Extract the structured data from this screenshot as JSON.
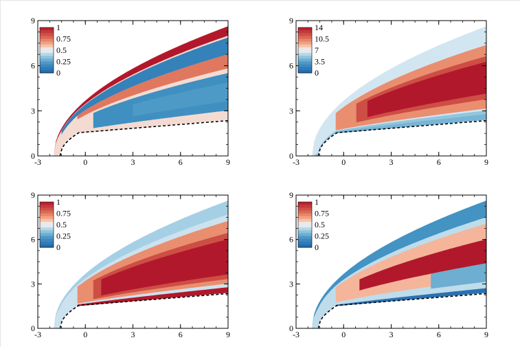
{
  "chart_data": [
    {
      "type": "heatmap",
      "panel": "top-left",
      "x_ticks": [
        "-3",
        "0",
        "3",
        "6",
        "9"
      ],
      "y_ticks": [
        "0",
        "3",
        "6",
        "9"
      ],
      "xlim": [
        -3,
        9
      ],
      "ylim": [
        0,
        9
      ],
      "legend_labels": [
        "1",
        "0.75",
        "0.5",
        "0.25",
        "0"
      ],
      "legend_position": "top-left",
      "value_range": [
        0,
        1
      ],
      "features": [
        {
          "kind": "bow-shock-band",
          "level": 1.0
        },
        {
          "kind": "low-band",
          "level": 0.1
        },
        {
          "kind": "high-band",
          "level": 0.8
        },
        {
          "kind": "low-region",
          "level": 0.15
        }
      ],
      "boundary_line": "dashed"
    },
    {
      "type": "heatmap",
      "panel": "top-right",
      "x_ticks": [
        "-3",
        "0",
        "3",
        "6",
        "9"
      ],
      "y_ticks": [
        "0",
        "3",
        "6",
        "9"
      ],
      "xlim": [
        -3,
        9
      ],
      "ylim": [
        0,
        9
      ],
      "legend_labels": [
        "14",
        "10.5",
        "7",
        "3.5",
        "0"
      ],
      "legend_position": "top-left",
      "value_range": [
        0,
        14
      ],
      "features": [
        {
          "kind": "mid-band",
          "level": 6
        },
        {
          "kind": "core",
          "level": 14
        },
        {
          "kind": "wall-strip",
          "level": 2
        }
      ],
      "boundary_line": "dashed"
    },
    {
      "type": "heatmap",
      "panel": "bottom-left",
      "x_ticks": [
        "-3",
        "0",
        "3",
        "6",
        "9"
      ],
      "y_ticks": [
        "0",
        "3",
        "6",
        "9"
      ],
      "xlim": [
        -3,
        9
      ],
      "ylim": [
        0,
        9
      ],
      "legend_labels": [
        "1",
        "0.75",
        "0.5",
        "0.25",
        "0"
      ],
      "legend_position": "top-left",
      "value_range": [
        0,
        1
      ],
      "features": [
        {
          "kind": "shock-edge",
          "level": 0.3
        },
        {
          "kind": "mid-band",
          "level": 0.7
        },
        {
          "kind": "core",
          "level": 1.0
        },
        {
          "kind": "wall-strip",
          "level": 1.0
        }
      ],
      "boundary_line": "dashed"
    },
    {
      "type": "heatmap",
      "panel": "bottom-right",
      "x_ticks": [
        "-3",
        "0",
        "3",
        "6",
        "9"
      ],
      "y_ticks": [
        "0",
        "3",
        "6",
        "9"
      ],
      "xlim": [
        -3,
        9
      ],
      "ylim": [
        0,
        9
      ],
      "legend_labels": [
        "1",
        "0.75",
        "0.5",
        "0.25",
        "0"
      ],
      "legend_position": "top-left",
      "value_range": [
        0,
        1
      ],
      "features": [
        {
          "kind": "shock-edge",
          "level": 0.1
        },
        {
          "kind": "mid-band",
          "level": 0.65
        },
        {
          "kind": "core",
          "level": 1.0
        },
        {
          "kind": "low-pocket",
          "level": 0.25
        },
        {
          "kind": "wall-strip",
          "level": 0.05
        }
      ],
      "boundary_line": "dashed"
    }
  ]
}
